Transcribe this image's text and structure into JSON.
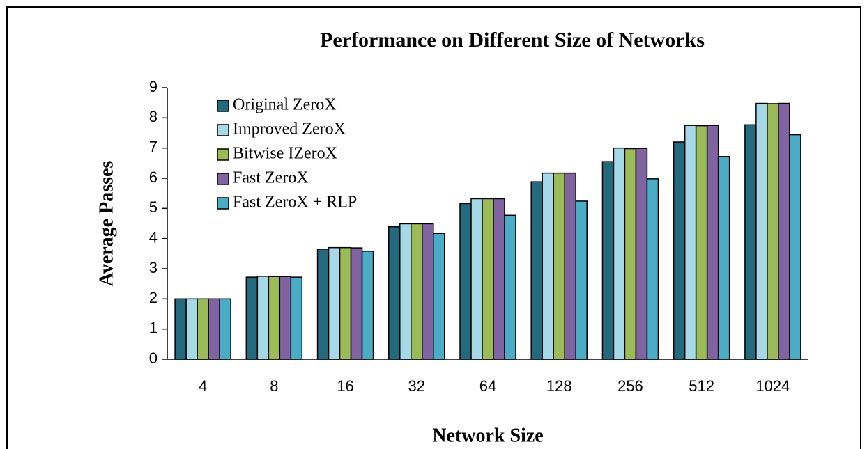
{
  "chart_data": {
    "type": "bar",
    "title": "Performance on Different Size of Networks",
    "x_label": "Network Size",
    "y_label": "Average Passes",
    "categories": [
      "4",
      "8",
      "16",
      "32",
      "64",
      "128",
      "256",
      "512",
      "1024"
    ],
    "series": [
      {
        "name": "Original ZeroX",
        "color": "#236a7e",
        "values": [
          2,
          2.72,
          3.65,
          4.39,
          5.16,
          5.88,
          6.55,
          7.2,
          7.77
        ]
      },
      {
        "name": "Improved ZeroX",
        "color": "#a6d9e8",
        "values": [
          2,
          2.75,
          3.7,
          4.49,
          5.32,
          6.17,
          7.0,
          7.75,
          8.48
        ]
      },
      {
        "name": "Bitwise IZeroX",
        "color": "#9bbb59",
        "values": [
          2,
          2.74,
          3.7,
          4.49,
          5.32,
          6.17,
          6.98,
          7.74,
          8.47
        ]
      },
      {
        "name": "Fast ZeroX",
        "color": "#8064a2",
        "values": [
          2,
          2.74,
          3.69,
          4.49,
          5.32,
          6.17,
          6.99,
          7.75,
          8.48
        ]
      },
      {
        "name": "Fast ZeroX + RLP",
        "color": "#4bacc6",
        "values": [
          2,
          2.72,
          3.58,
          4.17,
          4.77,
          5.24,
          5.98,
          6.72,
          7.44
        ]
      }
    ],
    "ylim": [
      0,
      9
    ],
    "yticks": [
      0,
      1,
      2,
      3,
      4,
      5,
      6,
      7,
      8,
      9
    ],
    "grid": false,
    "legend": "upper left"
  }
}
